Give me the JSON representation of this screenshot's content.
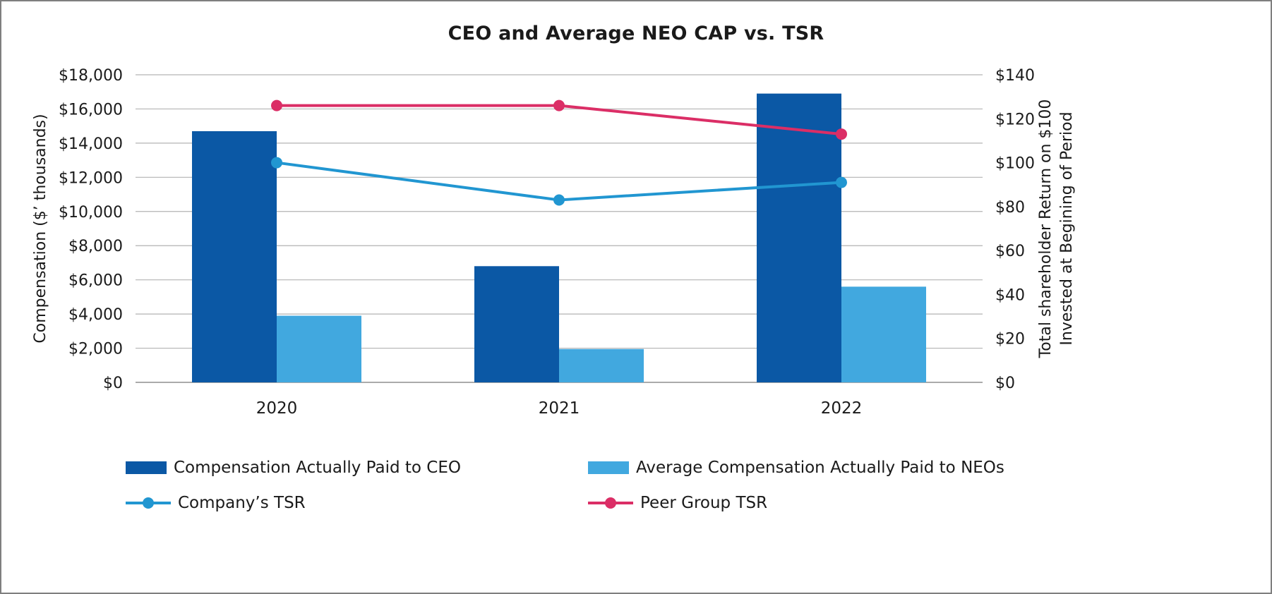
{
  "chart_data": {
    "type": "bar",
    "subtype": "combo-bar-line-dual-axis",
    "title": "CEO and Average NEO CAP vs. TSR",
    "categories": [
      "2020",
      "2021",
      "2022"
    ],
    "bar_series": [
      {
        "name": "Compensation Actually Paid to CEO",
        "axis": "left",
        "color": "#0b58a5",
        "values": [
          14700,
          6800,
          16900
        ]
      },
      {
        "name": "Average Compensation Actually Paid to NEOs",
        "axis": "left",
        "color": "#41a8df",
        "values": [
          3900,
          1950,
          5600
        ]
      }
    ],
    "line_series": [
      {
        "name": "Company’s TSR",
        "axis": "right",
        "color": "#2196d1",
        "marker": "circle",
        "values": [
          100,
          83,
          91
        ]
      },
      {
        "name": "Peer Group TSR",
        "axis": "right",
        "color": "#db2e66",
        "marker": "circle",
        "values": [
          126,
          126,
          113
        ]
      }
    ],
    "left_axis": {
      "label": "Compensation ($’ thousands)",
      "min": 0,
      "max": 18000,
      "step": 2000,
      "tick_labels": [
        "$0",
        "$2,000",
        "$4,000",
        "$6,000",
        "$8,000",
        "$10,000",
        "$12,000",
        "$14,000",
        "$16,000",
        "$18,000"
      ]
    },
    "right_axis": {
      "label_line1": "Total shareholder Return on $100",
      "label_line2": "Invested at Begining of Period",
      "min": 0,
      "max": 140,
      "step": 20,
      "tick_labels": [
        "$0",
        "$20",
        "$40",
        "$60",
        "$80",
        "$100",
        "$120",
        "$140"
      ]
    },
    "grid": true,
    "gridline_color": "#b3b3b3",
    "baseline_color": "#8f8f8f",
    "legend_position": "bottom"
  }
}
